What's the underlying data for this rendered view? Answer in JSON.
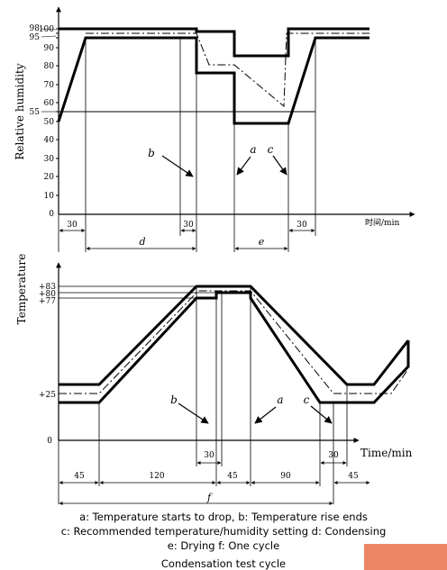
{
  "top_chart": {
    "ylabel": "Relative humidity",
    "yticks": [
      "100",
      "98",
      "95",
      "90",
      "80",
      "70",
      "60",
      "55",
      "50",
      "40",
      "30",
      "20",
      "10",
      "0"
    ],
    "xlabel": "时间/min",
    "segment_values": [
      "30",
      "30",
      "30"
    ],
    "segment_letters": [
      "d",
      "e"
    ],
    "point_labels": [
      "b",
      "a",
      "c"
    ]
  },
  "bottom_chart": {
    "ylabel": "Temperature",
    "yticks": [
      "+83",
      "+80",
      "+77",
      "+25",
      "0"
    ],
    "xlabel": "Time/min",
    "segment_values": [
      "30",
      "30",
      "45",
      "120",
      "45",
      "90",
      "45"
    ],
    "segment_letters": [
      "f"
    ],
    "point_labels": [
      "b",
      "a",
      "c"
    ]
  },
  "legend": {
    "line1": "a: Temperature starts to drop, b: Temperature rise ends",
    "line2": "c: Recommended temperature/humidity setting d: Condensing",
    "line3": "e: Drying f: One cycle"
  },
  "caption": "Condensation test cycle",
  "colors": {
    "line": "#000000",
    "corner_accent": "#ec8666"
  }
}
